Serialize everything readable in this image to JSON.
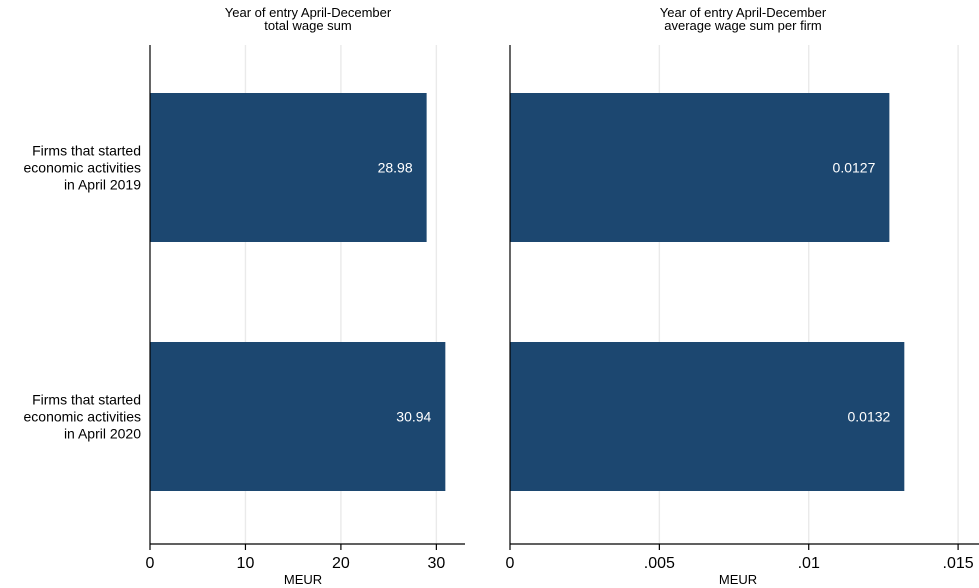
{
  "chart_data": [
    {
      "type": "bar",
      "orientation": "horizontal",
      "title": [
        "Year of entry April-December",
        "total wage sum"
      ],
      "xlabel": "MEUR",
      "categories": [
        [
          "Firms that started",
          "economic activities",
          "in April 2019"
        ],
        [
          "Firms that started",
          "economic activities",
          "in April 2020"
        ]
      ],
      "values": [
        28.98,
        30.94
      ],
      "value_labels": [
        "28.98",
        "30.94"
      ],
      "xlim": [
        0,
        33
      ],
      "ticks": [
        0,
        10,
        20,
        30
      ],
      "tick_labels": [
        "0",
        "10",
        "20",
        "30"
      ],
      "grid": true,
      "bar_color": "#1c4770"
    },
    {
      "type": "bar",
      "orientation": "horizontal",
      "title": [
        "Year of entry April-December",
        "average wage sum per firm"
      ],
      "xlabel": "MEUR",
      "values": [
        0.0127,
        0.0132
      ],
      "value_labels": [
        "0.0127",
        "0.0132"
      ],
      "xlim": [
        0,
        0.0157
      ],
      "ticks": [
        0,
        0.005,
        0.01,
        0.015
      ],
      "tick_labels": [
        "0",
        ".005",
        ".01",
        ".015"
      ],
      "grid": true,
      "bar_color": "#1c4770"
    }
  ]
}
